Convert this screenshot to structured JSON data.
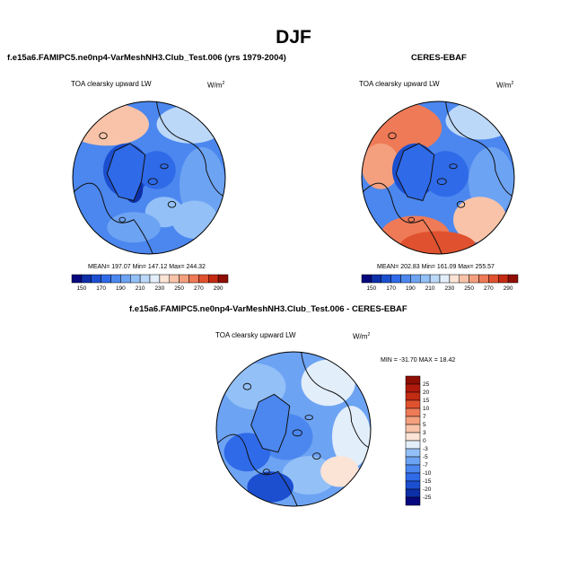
{
  "header": {
    "title": "DJF"
  },
  "panels": {
    "model": {
      "title": "f.e15a6.FAMIPC5.ne0np4-VarMeshNH3.Club_Test.006 (yrs 1979-2004)",
      "variable": "TOA clearsky upward LW",
      "units_base": "W/m",
      "units_exp": "2",
      "stats": "MEAN= 197.07  Min= 147.12  Max= 244.32"
    },
    "obs": {
      "title": "CERES-EBAF",
      "variable": "TOA clearsky upward LW",
      "units_base": "W/m",
      "units_exp": "2",
      "stats": "MEAN= 202.83  Min= 161.09  Max= 255.57"
    },
    "diff": {
      "title": "f.e15a6.FAMIPC5.ne0np4-VarMeshNH3.Club_Test.006 - CERES-EBAF",
      "variable": "TOA clearsky upward LW",
      "units_base": "W/m",
      "units_exp": "2",
      "stats": "MIN = -31.70 MAX =  18.42"
    }
  },
  "chart_data": [
    {
      "type": "heatmap",
      "projection": "north-polar-stereographic",
      "title": "f.e15a6.FAMIPC5.ne0np4-VarMeshNH3.Club_Test.006 (yrs 1979-2004)",
      "variable": "TOA clearsky upward LW",
      "units": "W/m2",
      "mean": 197.07,
      "min": 147.12,
      "max": 244.32,
      "colorbar": {
        "orientation": "horizontal",
        "levels": [
          150,
          160,
          170,
          180,
          190,
          200,
          210,
          220,
          230,
          240,
          250,
          260,
          270,
          280,
          290
        ],
        "tick_labels": [
          "150",
          "170",
          "190",
          "210",
          "230",
          "250",
          "270",
          "290"
        ],
        "colors": [
          "#08087e",
          "#0d2fa8",
          "#1c4fd0",
          "#2f6ae8",
          "#4b87ef",
          "#6da3f3",
          "#93c0f7",
          "#bcd8f8",
          "#e2eefa",
          "#fbe3d5",
          "#f8c3a8",
          "#f4a07f",
          "#ee7a57",
          "#e0522f",
          "#c32b13",
          "#8f0e05"
        ]
      }
    },
    {
      "type": "heatmap",
      "projection": "north-polar-stereographic",
      "title": "CERES-EBAF",
      "variable": "TOA clearsky upward LW",
      "units": "W/m2",
      "mean": 202.83,
      "min": 161.09,
      "max": 255.57,
      "colorbar": {
        "orientation": "horizontal",
        "levels": [
          150,
          160,
          170,
          180,
          190,
          200,
          210,
          220,
          230,
          240,
          250,
          260,
          270,
          280,
          290
        ],
        "tick_labels": [
          "150",
          "170",
          "190",
          "210",
          "230",
          "250",
          "270",
          "290"
        ],
        "colors": [
          "#08087e",
          "#0d2fa8",
          "#1c4fd0",
          "#2f6ae8",
          "#4b87ef",
          "#6da3f3",
          "#93c0f7",
          "#bcd8f8",
          "#e2eefa",
          "#fbe3d5",
          "#f8c3a8",
          "#f4a07f",
          "#ee7a57",
          "#e0522f",
          "#c32b13",
          "#8f0e05"
        ]
      }
    },
    {
      "type": "heatmap",
      "projection": "north-polar-stereographic",
      "title": "f.e15a6.FAMIPC5.ne0np4-VarMeshNH3.Club_Test.006 - CERES-EBAF",
      "variable": "TOA clearsky upward LW",
      "units": "W/m2",
      "min": -31.7,
      "max": 18.42,
      "colorbar": {
        "orientation": "vertical",
        "levels": [
          -25,
          -20,
          -15,
          -10,
          -7,
          -5,
          -3,
          0,
          3,
          5,
          7,
          10,
          15,
          20,
          25
        ],
        "tick_labels": [
          "-25",
          "-20",
          "-15",
          "-10",
          "-7",
          "-5",
          "-3",
          "0",
          "3",
          "5",
          "7",
          "10",
          "15",
          "20",
          "25"
        ],
        "colors": [
          "#08087e",
          "#0d2fa8",
          "#1c4fd0",
          "#2f6ae8",
          "#4b87ef",
          "#6da3f3",
          "#93c0f7",
          "#e2eefa",
          "#fbe3d5",
          "#f8c3a8",
          "#f4a07f",
          "#ee7a57",
          "#e0522f",
          "#c32b13",
          "#b01a0c",
          "#8f0e05"
        ]
      }
    }
  ]
}
